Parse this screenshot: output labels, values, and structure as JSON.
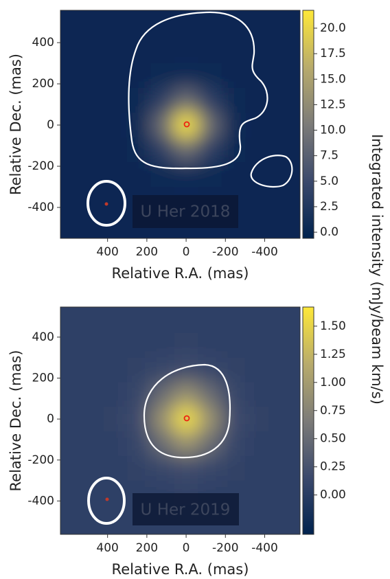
{
  "colorbar_label": "Integrated intensity (mJy/beam km/s)",
  "colormap": [
    "#00224e",
    "#3b496c",
    "#7c7b78",
    "#b8ab6c",
    "#fee838"
  ],
  "chart_data": [
    {
      "type": "heatmap",
      "annotation": "U Her 2018",
      "xlabel": "Relative R.A. (mas)",
      "ylabel": "Relative Dec. (mas)",
      "xlim": [
        640,
        -580
      ],
      "ylim": [
        -550,
        557
      ],
      "xticks": [
        400,
        200,
        0,
        -200,
        -400
      ],
      "yticks": [
        400,
        200,
        0,
        -200,
        -400
      ],
      "clim": [
        -0.6,
        21.75
      ],
      "cticks": [
        {
          "value": 0,
          "label": "0.0"
        },
        2.5,
        {
          "value": 5,
          "label": "5.0"
        },
        7.5,
        {
          "value": 10,
          "label": "10.0"
        },
        12.5,
        {
          "value": 15,
          "label": "15.0"
        },
        17.5,
        {
          "value": 20,
          "label": "20.0"
        }
      ],
      "x": [
        480,
        360,
        240,
        120,
        0,
        -120,
        -240,
        -360,
        -480
      ],
      "y": [
        480,
        360,
        240,
        120,
        0,
        -120,
        -240,
        -360,
        -480
      ],
      "z": [
        [
          0.3,
          0.3,
          0.3,
          0.3,
          0.3,
          0.3,
          0.3,
          0.3,
          0.3
        ],
        [
          0.3,
          0.3,
          0.3,
          0.3,
          0.3,
          0.3,
          0.3,
          0.3,
          0.3
        ],
        [
          0.3,
          0.3,
          0.3,
          0.5,
          0.9,
          0.5,
          0.3,
          0.3,
          0.3
        ],
        [
          0.3,
          0.3,
          0.5,
          3.8,
          8.9,
          3.8,
          0.5,
          0.3,
          0.3
        ],
        [
          0.3,
          0.3,
          0.9,
          8.9,
          21.3,
          8.9,
          0.9,
          0.3,
          0.3
        ],
        [
          0.3,
          0.3,
          0.5,
          3.8,
          8.9,
          3.8,
          0.5,
          0.3,
          0.3
        ],
        [
          0.3,
          0.3,
          0.3,
          0.5,
          0.9,
          0.5,
          0.3,
          0.3,
          0.3
        ],
        [
          0.3,
          0.3,
          0.3,
          0.3,
          0.3,
          0.3,
          0.3,
          0.3,
          0.3
        ],
        [
          0.3,
          0.3,
          0.3,
          0.3,
          0.3,
          0.3,
          0.3,
          0.3,
          0.3
        ]
      ]
    },
    {
      "type": "heatmap",
      "annotation": "U Her 2019",
      "xlabel": "Relative R.A. (mas)",
      "ylabel": "Relative Dec.  (mas)",
      "xlim": [
        640,
        -580
      ],
      "ylim": [
        -563,
        547
      ],
      "xticks": [
        400,
        200,
        0,
        -200,
        -400
      ],
      "yticks": [
        400,
        200,
        0,
        -200,
        -400
      ],
      "clim": [
        -0.35,
        1.67
      ],
      "cticks": [
        {
          "value": 0,
          "label": "0.00"
        },
        0.25,
        {
          "value": 0.5,
          "label": "0.50"
        },
        0.75,
        {
          "value": 1,
          "label": "1.00"
        },
        1.25,
        {
          "value": 1.5,
          "label": "1.50"
        }
      ],
      "x": [
        480,
        360,
        240,
        120,
        0,
        -120,
        -240,
        -360,
        -480
      ],
      "y": [
        480,
        360,
        240,
        120,
        0,
        -120,
        -240,
        -360,
        -480
      ],
      "z": [
        [
          0.05,
          0.05,
          0.05,
          0.05,
          0.05,
          0.05,
          0.05,
          0.05,
          0.05
        ],
        [
          0.05,
          0.05,
          0.05,
          0.05,
          0.06,
          0.05,
          0.05,
          0.05,
          0.05
        ],
        [
          0.05,
          0.05,
          0.06,
          0.13,
          0.19,
          0.13,
          0.06,
          0.05,
          0.05
        ],
        [
          0.05,
          0.05,
          0.13,
          0.52,
          0.9,
          0.52,
          0.13,
          0.05,
          0.05
        ],
        [
          0.05,
          0.06,
          0.19,
          0.9,
          1.6,
          0.9,
          0.19,
          0.06,
          0.05
        ],
        [
          0.05,
          0.05,
          0.13,
          0.52,
          0.9,
          0.52,
          0.13,
          0.05,
          0.05
        ],
        [
          0.05,
          0.05,
          0.06,
          0.13,
          0.19,
          0.13,
          0.06,
          0.05,
          0.05
        ],
        [
          0.05,
          0.05,
          0.05,
          0.05,
          0.06,
          0.05,
          0.05,
          0.05,
          0.05
        ],
        [
          0.05,
          0.05,
          0.05,
          0.05,
          0.05,
          0.05,
          0.05,
          0.05,
          0.05
        ]
      ]
    }
  ]
}
